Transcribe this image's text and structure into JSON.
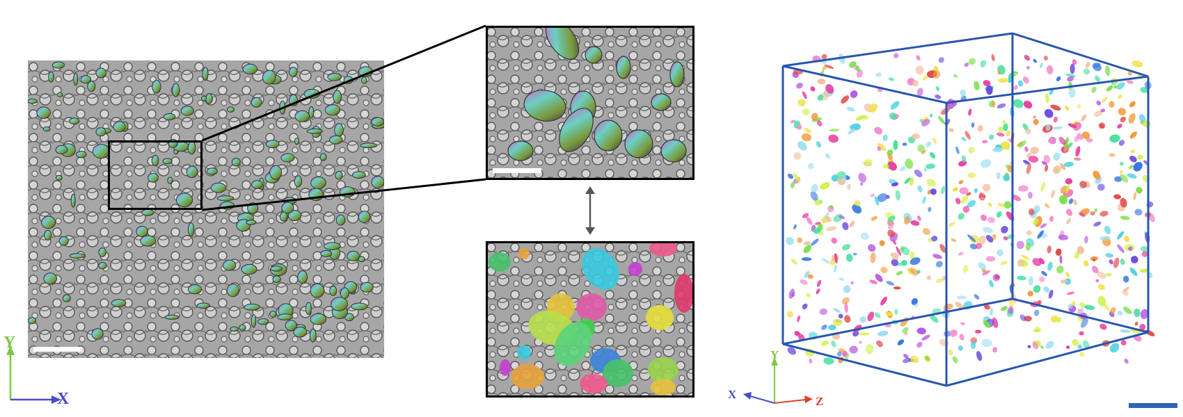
{
  "axes_2d": {
    "y_label": "Y",
    "x_label": "X",
    "y_color": "#7ac943",
    "x_color": "#4a4ad0"
  },
  "axes_3d": {
    "y_label": "Y",
    "x_label": "X",
    "z_label": "Z",
    "y_color": "#7ac943",
    "x_color": "#4a4ad0",
    "z_color": "#e0402a"
  },
  "colors": {
    "frame": "#000000",
    "cube": "#2855b0",
    "scale_bar_white": "#ffffff",
    "scale_bar_blue": "#2f63b6",
    "arrow": "#555555",
    "em_bg": "#9a9a9a"
  },
  "icons": [
    "em-section-image",
    "zoom-inset-raw",
    "zoom-inset-segmentation",
    "bidirectional-arrow",
    "3d-volume-rendering",
    "scale-bar"
  ]
}
